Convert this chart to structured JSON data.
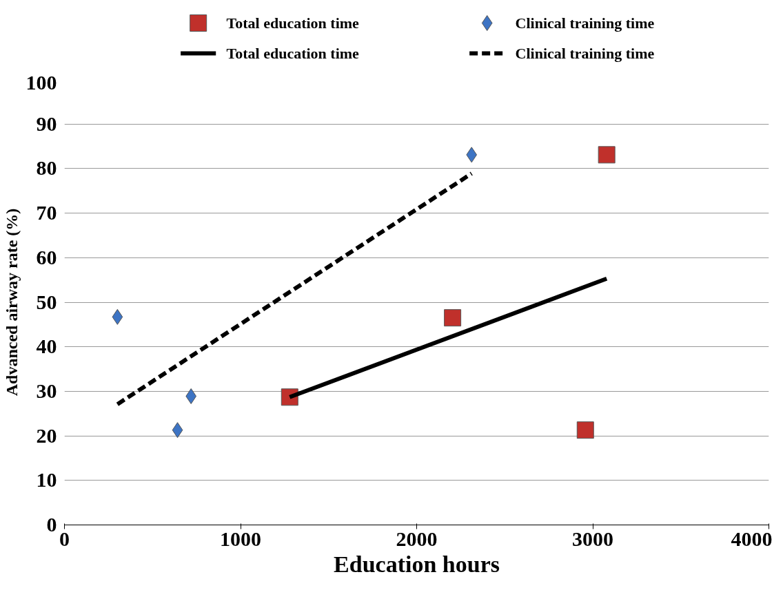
{
  "chart_data": {
    "type": "scatter",
    "xlabel": "Education hours",
    "ylabel": "Advanced airway rate (%)",
    "xlim": [
      0,
      4000
    ],
    "xticks": [
      0,
      1000,
      2000,
      3000,
      4000
    ],
    "ylim": [
      0,
      100
    ],
    "yticks": [
      0,
      10,
      20,
      30,
      40,
      50,
      60,
      70,
      80,
      90,
      100
    ],
    "grid": "y",
    "legend": "top",
    "series": [
      {
        "name": "Total education time",
        "marker": "square",
        "color": "#c0302b",
        "x": [
          1279,
          2204,
          3079,
          2958
        ],
        "values": [
          28.7,
          46.5,
          83.1,
          21.3
        ]
      },
      {
        "name": "Clinical training time",
        "marker": "diamond",
        "color": "#3d74c4",
        "x": [
          301,
          642,
          719,
          2312
        ],
        "values": [
          46.7,
          21.3,
          28.9,
          83.1
        ]
      },
      {
        "name": "Total education time",
        "type": "line",
        "line_style": "solid",
        "color": "#000000",
        "x": [
          1279,
          3079
        ],
        "values": [
          28.7,
          55.3
        ]
      },
      {
        "name": "Clinical training time",
        "type": "line",
        "line_style": "dashed",
        "color": "#000000",
        "x": [
          301,
          2312
        ],
        "values": [
          27.1,
          78.9
        ]
      }
    ]
  }
}
